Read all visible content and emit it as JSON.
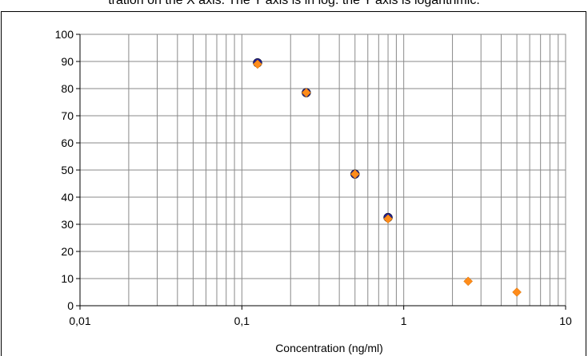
{
  "caption": "tration on the X axis. The Y axis is in log. the Y axis is logarithmic.",
  "chart_data": {
    "type": "scatter",
    "xlabel": "Concentration (ng/ml)",
    "ylabel": "",
    "title": "",
    "x_scale": "log",
    "xlim": [
      0.01,
      10
    ],
    "ylim": [
      0,
      100
    ],
    "x_ticks": [
      0.01,
      0.1,
      1,
      10
    ],
    "x_tick_labels": [
      "0,01",
      "0,1",
      "1",
      "10"
    ],
    "y_ticks": [
      0,
      10,
      20,
      30,
      40,
      50,
      60,
      70,
      80,
      90,
      100
    ],
    "y_tick_labels": [
      "0",
      "10",
      "20",
      "30",
      "40",
      "50",
      "60",
      "70",
      "80",
      "90",
      "100"
    ],
    "grid": true,
    "series": [
      {
        "marker": "circle",
        "color": "#1f1f8f",
        "points": [
          {
            "x": 0.125,
            "y": 89.5
          },
          {
            "x": 0.25,
            "y": 78.5
          },
          {
            "x": 0.5,
            "y": 48.5
          },
          {
            "x": 0.8,
            "y": 32.5
          }
        ]
      },
      {
        "marker": "diamond",
        "color": "#ff8c1a",
        "points": [
          {
            "x": 0.125,
            "y": 89
          },
          {
            "x": 0.25,
            "y": 78.5
          },
          {
            "x": 0.5,
            "y": 48.5
          },
          {
            "x": 0.8,
            "y": 32
          },
          {
            "x": 2.5,
            "y": 9
          },
          {
            "x": 5,
            "y": 5
          }
        ]
      }
    ]
  }
}
